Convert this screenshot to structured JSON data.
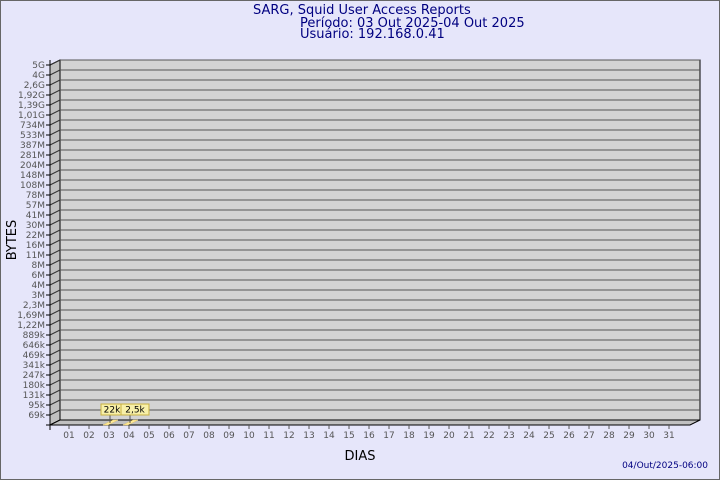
{
  "chart_data": {
    "type": "bar",
    "title": "SARG, Squid User Access Reports",
    "subtitle_period": "Período: 03 Out 2025-04 Out 2025",
    "subtitle_user": "Usuário: 192.168.0.41",
    "xlabel": "DIAS",
    "ylabel": "BYTES",
    "y_scale": "log",
    "y_tick_labels": [
      "5G",
      "4G",
      "2,6G",
      "1,92G",
      "1,39G",
      "1,01G",
      "734M",
      "533M",
      "387M",
      "281M",
      "204M",
      "148M",
      "108M",
      "78M",
      "57M",
      "41M",
      "30M",
      "22M",
      "16M",
      "11M",
      "8M",
      "6M",
      "4M",
      "3M",
      "2,3M",
      "1,69M",
      "1,22M",
      "889k",
      "646k",
      "469k",
      "341k",
      "247k",
      "180k",
      "131k",
      "95k",
      "69k"
    ],
    "categories": [
      "01",
      "02",
      "03",
      "04",
      "05",
      "06",
      "07",
      "08",
      "09",
      "10",
      "11",
      "12",
      "13",
      "14",
      "15",
      "16",
      "17",
      "18",
      "19",
      "20",
      "21",
      "22",
      "23",
      "24",
      "25",
      "26",
      "27",
      "28",
      "29",
      "30",
      "31"
    ],
    "bars": [
      {
        "category": "03",
        "label": "22k",
        "value": 22000
      },
      {
        "category": "04",
        "label": "2,5k",
        "value": 2500
      }
    ],
    "grid": true,
    "bar_color": "#ffeb9c",
    "wall_color": "#d3d3d3"
  },
  "footer": {
    "timestamp": "04/Out/2025-06:00"
  }
}
